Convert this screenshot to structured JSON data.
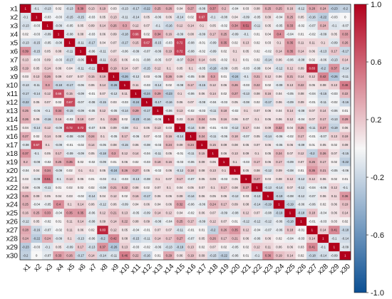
{
  "chart_data": {
    "type": "heatmap",
    "title": "",
    "labels": [
      "x1",
      "x2",
      "x3",
      "x4",
      "x5",
      "x6",
      "x7",
      "x8",
      "x9",
      "x10",
      "x11",
      "x12",
      "x13",
      "x14",
      "x15",
      "x16",
      "x17",
      "x18",
      "x19",
      "x20",
      "x21",
      "x22",
      "x23",
      "x24",
      "x25",
      "x26",
      "x27",
      "x28",
      "x29",
      "x30"
    ],
    "value_range": [
      -1.0,
      1.0
    ],
    "colorbar_ticks": [
      "1.0",
      "0.6",
      "0.2",
      "-0.2",
      "-0.6",
      "-1.0"
    ],
    "colors": {
      "low": "#0b4f93",
      "mid": "#f7f7f7",
      "high": "#b2001c"
    },
    "values": [
      [
        1,
        -0.1,
        -0.13,
        0.02,
        -0.13,
        0.39,
        0.13,
        0.19,
        0.03,
        -0.13,
        -0.17,
        -0.22,
        0.25,
        0.26,
        0.04,
        0.27,
        -0.08,
        0.37,
        0.2,
        -0.04,
        0.03,
        0.08,
        0.25,
        0.25,
        0.16,
        -0.12,
        0.28,
        0.24,
        -0.23,
        -0.2
      ],
      [
        -0.1,
        1,
        -0.03,
        -0.03,
        -0.15,
        -0.15,
        -0.03,
        0.05,
        0.13,
        -0.11,
        -0.14,
        0.05,
        -0.06,
        0.06,
        -0.14,
        0.02,
        0.67,
        -0.1,
        -0.08,
        0.04,
        -0.09,
        -0.05,
        0.09,
        -0.04,
        0.25,
        0.05,
        -0.16,
        -0.22,
        -0.03,
        0
      ],
      [
        -0.13,
        -0.03,
        1,
        -0.09,
        -0.05,
        0.05,
        0.09,
        0.14,
        0.26,
        0.3,
        0.12,
        0.07,
        -0.1,
        -0.16,
        0.12,
        0.14,
        0.1,
        0.05,
        -0.02,
        0.34,
        0.51,
        -0.11,
        0.05,
        -0.05,
        0.33,
        -0.02,
        -0.07,
        0.24,
        -0.1,
        -0.07
      ],
      [
        0.02,
        -0.03,
        -0.09,
        1,
        -0.08,
        0.08,
        -0.03,
        0.06,
        0.09,
        -0.18,
        0.66,
        0.02,
        0.34,
        0.16,
        -0.09,
        0.08,
        -0.09,
        0.17,
        0.25,
        -0.09,
        -0.1,
        0.01,
        0.04,
        0.4,
        -0.04,
        0.01,
        -0.02,
        -0.09,
        0.05,
        0.33
      ],
      [
        -0.13,
        -0.15,
        -0.05,
        -0.08,
        1,
        -0.11,
        -0.17,
        0.04,
        0.07,
        -0.17,
        0.15,
        0.67,
        -0.15,
        -0.03,
        0.72,
        -0.08,
        -0.01,
        -0.09,
        0.35,
        0.02,
        0.13,
        0.02,
        0.03,
        0.1,
        0.35,
        0.11,
        0.11,
        0.1,
        -0.09,
        0.26
      ],
      [
        0.39,
        -0.15,
        0.05,
        0.08,
        -0.11,
        1,
        -0.06,
        -0.11,
        0.07,
        -0.06,
        -0.09,
        -0.07,
        -0.09,
        0.19,
        0.72,
        -0.08,
        -0.02,
        -0.09,
        0.02,
        0.1,
        0.05,
        0.02,
        -0.02,
        0.14,
        0.35,
        0.14,
        0.06,
        -0.13,
        0.17,
        -0.17
      ],
      [
        0.13,
        -0.03,
        0.09,
        -0.03,
        -0.17,
        -0.06,
        1,
        -0.11,
        0.15,
        0.06,
        -0.01,
        -0.08,
        -0.05,
        0.07,
        -0.07,
        0.24,
        0.14,
        0.05,
        -0.02,
        0.1,
        0.01,
        0.02,
        -0.14,
        0.06,
        -0.06,
        -0.08,
        0.02,
        -0.06,
        -0.13,
        0.14
      ],
      [
        0.19,
        0.05,
        0.14,
        0.06,
        0.04,
        -0.11,
        -0.11,
        1,
        0.19,
        0.14,
        0.07,
        -0.15,
        0.12,
        0.1,
        0.05,
        0.1,
        -0.05,
        -0.18,
        -0.09,
        0.05,
        -0.03,
        -0.08,
        0.04,
        -0.12,
        0.12,
        0.09,
        0.83,
        -0.2,
        0.37,
        -0.14
      ],
      [
        0.03,
        0.13,
        0.26,
        0.09,
        0.07,
        0.07,
        0.15,
        0.19,
        1,
        -0.26,
        -0.12,
        0.03,
        -0.05,
        0.26,
        0.09,
        -0.05,
        0.08,
        0.3,
        0.01,
        -0.24,
        -0.1,
        0.21,
        0.12,
        0.06,
        0.21,
        0.14,
        0.12,
        0.42,
        -0.26,
        -0.11
      ],
      [
        -0.13,
        -0.11,
        0.3,
        -0.18,
        -0.17,
        -0.06,
        0.06,
        0.14,
        -0.26,
        1,
        0.11,
        -0.03,
        -0.14,
        0.02,
        -0.08,
        0.17,
        -0.15,
        0.12,
        0.06,
        0.26,
        -0.03,
        0.22,
        0.02,
        -0.09,
        0.13,
        0.22,
        0.05,
        0.08,
        0.13,
        0.46
      ],
      [
        -0.17,
        -0.14,
        0.12,
        0.66,
        0.15,
        -0.09,
        -0.01,
        0.07,
        -0.12,
        0.11,
        1,
        -0.24,
        0.29,
        -0.23,
        0.1,
        -0.06,
        0.06,
        0.14,
        0.02,
        0.27,
        -0.13,
        0.08,
        0.16,
        0.04,
        -0.05,
        0.08,
        -0.04,
        -0.15,
        -0.03,
        0.22
      ],
      [
        -0.22,
        0.05,
        0.07,
        0.02,
        0.67,
        -0.07,
        -0.08,
        -0.15,
        0.03,
        -0.03,
        -0.24,
        1,
        -0.17,
        -0.16,
        0.06,
        0.07,
        -0.08,
        -0.04,
        -0.03,
        0.05,
        -0.08,
        0.02,
        -0.17,
        0.06,
        -0.09,
        0.09,
        -0.01,
        -0.11,
        -0.02,
        -0.16
      ],
      [
        0.25,
        -0.06,
        -0.1,
        0.34,
        -0.15,
        -0.09,
        -0.05,
        0.12,
        -0.05,
        -0.14,
        0.29,
        -0.17,
        1,
        -0.06,
        0.13,
        -0.02,
        -0.03,
        -0.11,
        0.18,
        -0.02,
        0.1,
        0.07,
        0.06,
        0.04,
        0.14,
        -0.08,
        0.07,
        0.14,
        -0.06,
        0.01
      ],
      [
        0.26,
        0.06,
        -0.16,
        0.16,
        -0.03,
        0.19,
        0.07,
        0.1,
        0.26,
        0.02,
        -0.23,
        -0.16,
        -0.06,
        1,
        0.03,
        0.16,
        0.24,
        0.05,
        0.16,
        0.06,
        0.07,
        0.1,
        0.06,
        0.06,
        0.12,
        -0.04,
        0.07,
        0.17,
        -0.13,
        0.29
      ],
      [
        0.04,
        -0.14,
        0.12,
        -0.09,
        0.72,
        0.72,
        -0.07,
        0.05,
        0.09,
        -0.08,
        0.1,
        0.06,
        0.13,
        0.03,
        1,
        -0.14,
        0.09,
        -0.01,
        -0.03,
        -0.12,
        0.17,
        0.04,
        0.09,
        0.32,
        0.04,
        0.25,
        -0.11,
        0.27,
        -0.19,
        0.06
      ],
      [
        0.27,
        0.02,
        0.14,
        0.08,
        -0.08,
        -0.08,
        0.24,
        0.1,
        -0.05,
        0.17,
        -0.06,
        0.07,
        -0.02,
        0.16,
        -0.14,
        1,
        0.24,
        -0.11,
        -0.06,
        0.18,
        -0.07,
        0.05,
        -0.14,
        -0.06,
        -0.02,
        0.17,
        -0.01,
        -0.07,
        0.13,
        0.19
      ],
      [
        -0.08,
        0.67,
        0.1,
        -0.09,
        -0.01,
        -0.02,
        0.14,
        -0.05,
        0.08,
        -0.15,
        0.06,
        -0.08,
        -0.03,
        0.24,
        0.09,
        0.24,
        1,
        0.15,
        0.09,
        0.08,
        0.05,
        0.07,
        0.06,
        -0.06,
        0.06,
        -0.09,
        0.01,
        0.05,
        0.02,
        0.09
      ],
      [
        0.37,
        -0.1,
        0.05,
        0.17,
        -0.09,
        -0.09,
        0.05,
        -0.18,
        0.3,
        0.12,
        0.14,
        -0.04,
        -0.11,
        0.05,
        -0.01,
        -0.11,
        0.15,
        1,
        0.06,
        0.13,
        0.09,
        0.1,
        0.05,
        0.24,
        0.07,
        0.12,
        -0.2,
        0.26,
        0.07,
        -0.15
      ],
      [
        0.2,
        -0.08,
        -0.02,
        0.25,
        0.35,
        0.02,
        -0.02,
        -0.09,
        0.01,
        0.06,
        0.02,
        -0.03,
        0.18,
        0.16,
        -0.03,
        -0.06,
        0.09,
        0.06,
        1,
        0.1,
        -0.03,
        0.17,
        0.06,
        0.17,
        -0.09,
        0.07,
        0.26,
        0.17,
        0.02,
        -0.22
      ],
      [
        -0.04,
        0.04,
        0.34,
        -0.09,
        0.02,
        0.1,
        0.1,
        0.05,
        -0.24,
        0.26,
        0.27,
        0.05,
        -0.02,
        0.06,
        -0.12,
        0.18,
        0.08,
        0.13,
        0.1,
        1,
        0.05,
        0.08,
        -0.12,
        0.09,
        -0.08,
        0.01,
        0.35,
        0.21,
        -0.05,
        -0.06
      ],
      [
        0.03,
        -0.09,
        0.51,
        -0.1,
        0.13,
        0.05,
        0.01,
        -0.03,
        -0.1,
        -0.03,
        -0.13,
        -0.08,
        0.1,
        0.07,
        0.17,
        -0.07,
        0.05,
        0.09,
        -0.03,
        0.05,
        1,
        0.27,
        0.03,
        0.08,
        0.12,
        -0.12,
        0.12,
        0.06,
        0.02,
        0.01
      ],
      [
        0.08,
        -0.05,
        -0.11,
        0.01,
        0.02,
        0.02,
        0.02,
        -0.08,
        0.21,
        0.22,
        0.08,
        0.02,
        0.07,
        0.1,
        0.04,
        0.05,
        0.07,
        0.1,
        0.17,
        0.08,
        0.27,
        1,
        -0.13,
        -0.14,
        0.07,
        -0.12,
        -0.04,
        -0.06,
        0.12,
        -0.1
      ],
      [
        0.25,
        0.09,
        0.05,
        0.04,
        0.03,
        -0.02,
        -0.14,
        0.04,
        0.12,
        0.02,
        0.16,
        -0.17,
        0.06,
        0.06,
        0.09,
        -0.14,
        0.06,
        0.05,
        0.06,
        -0.12,
        0.03,
        -0.13,
        1,
        -0.19,
        -0.08,
        -0.12,
        -0.07,
        0.06,
        0.11,
        0.36
      ],
      [
        0.25,
        -0.04,
        -0.05,
        0.4,
        0.1,
        0.14,
        0.06,
        -0.12,
        0.06,
        -0.09,
        0.04,
        0.06,
        0.04,
        0.06,
        0.32,
        -0.06,
        -0.06,
        0.24,
        0.17,
        0.09,
        0.08,
        -0.14,
        -0.19,
        1,
        -0.19,
        -0.06,
        -0.06,
        0.02,
        0.06,
        0.19
      ],
      [
        0.16,
        0.25,
        0.33,
        -0.04,
        0.35,
        0.35,
        -0.06,
        0.12,
        0.21,
        0.13,
        -0.05,
        -0.09,
        0.14,
        0.12,
        0.04,
        -0.02,
        0.06,
        0.07,
        -0.09,
        -0.08,
        0.12,
        0.07,
        -0.08,
        -0.19,
        1,
        -0.18,
        0.18,
        -0.04,
        0.06,
        0.14
      ],
      [
        -0.12,
        0.05,
        -0.02,
        0.01,
        0.11,
        0.14,
        -0.08,
        0.09,
        0.14,
        0.22,
        0.08,
        0.09,
        -0.08,
        -0.04,
        0.25,
        0.17,
        -0.09,
        0.12,
        0.07,
        0.01,
        -0.12,
        -0.12,
        -0.12,
        -0.06,
        -0.18,
        1,
        -0.01,
        -0.03,
        0.03,
        0.02
      ],
      [
        0.28,
        -0.16,
        -0.07,
        -0.02,
        0.11,
        0.06,
        0.02,
        0.83,
        0.12,
        0.05,
        -0.04,
        -0.01,
        0.07,
        0.07,
        -0.11,
        -0.01,
        0.01,
        -0.2,
        0.26,
        0.35,
        0.12,
        -0.04,
        -0.07,
        -0.06,
        0.18,
        -0.01,
        1,
        0.14,
        0.41,
        -0.18
      ],
      [
        0.24,
        -0.22,
        0.24,
        -0.09,
        0.1,
        -0.13,
        -0.06,
        -0.2,
        0.42,
        0.08,
        -0.15,
        -0.11,
        0.14,
        0.17,
        0.27,
        -0.07,
        0.05,
        0.26,
        0.17,
        0.21,
        0.06,
        -0.06,
        0.06,
        0.02,
        -0.04,
        -0.03,
        0.14,
        1,
        -0.1,
        -0.14
      ],
      [
        -0.23,
        -0.03,
        -0.1,
        0.05,
        -0.09,
        0.17,
        -0.13,
        0.37,
        -0.26,
        0.13,
        -0.03,
        -0.02,
        -0.06,
        -0.13,
        -0.19,
        0.13,
        0.02,
        0.07,
        0.02,
        -0.05,
        0.02,
        0.12,
        0.11,
        0.06,
        0.06,
        0.03,
        0.41,
        -0.1,
        1,
        -0.09
      ],
      [
        -0.2,
        0,
        -0.07,
        0.33,
        0.26,
        -0.17,
        0.14,
        -0.14,
        -0.11,
        0.46,
        0.22,
        -0.16,
        0.01,
        0.29,
        0.06,
        0.19,
        0.09,
        -0.15,
        -0.22,
        -0.06,
        0.01,
        -0.1,
        0.36,
        0.19,
        0.14,
        0.02,
        -0.18,
        -0.14,
        -0.09,
        1
      ]
    ]
  }
}
